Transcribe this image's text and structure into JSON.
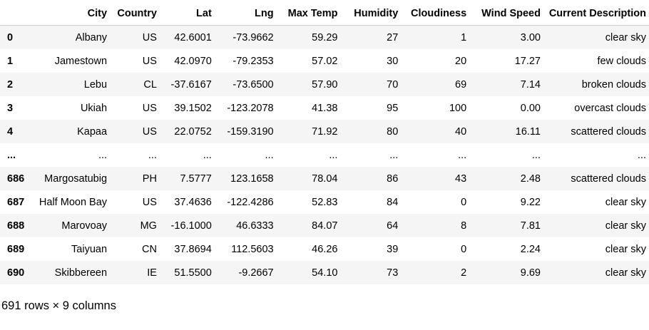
{
  "table": {
    "columns": [
      "",
      "City",
      "Country",
      "Lat",
      "Lng",
      "Max Temp",
      "Humidity",
      "Cloudiness",
      "Wind Speed",
      "Current Description"
    ],
    "rows": [
      [
        "0",
        "Albany",
        "US",
        "42.6001",
        "-73.9662",
        "59.29",
        "27",
        "1",
        "3.00",
        "clear sky"
      ],
      [
        "1",
        "Jamestown",
        "US",
        "42.0970",
        "-79.2353",
        "57.02",
        "30",
        "20",
        "17.27",
        "few clouds"
      ],
      [
        "2",
        "Lebu",
        "CL",
        "-37.6167",
        "-73.6500",
        "57.90",
        "70",
        "69",
        "7.14",
        "broken clouds"
      ],
      [
        "3",
        "Ukiah",
        "US",
        "39.1502",
        "-123.2078",
        "41.38",
        "95",
        "100",
        "0.00",
        "overcast clouds"
      ],
      [
        "4",
        "Kapaa",
        "US",
        "22.0752",
        "-159.3190",
        "71.92",
        "80",
        "40",
        "16.11",
        "scattered clouds"
      ],
      [
        "...",
        "...",
        "...",
        "...",
        "...",
        "...",
        "...",
        "...",
        "...",
        "..."
      ],
      [
        "686",
        "Margosatubig",
        "PH",
        "7.5777",
        "123.1658",
        "78.04",
        "86",
        "43",
        "2.48",
        "scattered clouds"
      ],
      [
        "687",
        "Half Moon Bay",
        "US",
        "37.4636",
        "-122.4286",
        "52.83",
        "84",
        "0",
        "9.22",
        "clear sky"
      ],
      [
        "688",
        "Marovoay",
        "MG",
        "-16.1000",
        "46.6333",
        "84.07",
        "64",
        "8",
        "7.81",
        "clear sky"
      ],
      [
        "689",
        "Taiyuan",
        "CN",
        "37.8694",
        "112.5603",
        "46.26",
        "39",
        "0",
        "2.24",
        "clear sky"
      ],
      [
        "690",
        "Skibbereen",
        "IE",
        "51.5500",
        "-9.2667",
        "54.10",
        "73",
        "2",
        "9.69",
        "clear sky"
      ]
    ]
  },
  "footer": {
    "shape": "691 rows × 9 columns"
  }
}
